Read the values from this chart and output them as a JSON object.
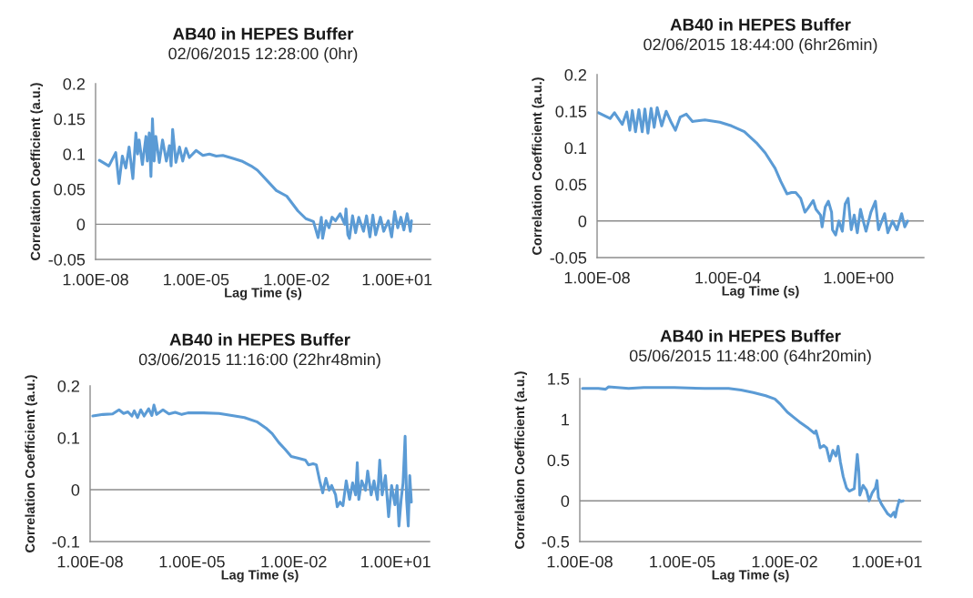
{
  "chart_data": [
    {
      "type": "line",
      "title": "AB40 in HEPES Buffer",
      "subtitle": "02/06/2015 12:28:00 (0hr)",
      "ref_lines": [
        {
          "axis": "y",
          "value": 0
        }
      ],
      "xlabel": "Lag Time (s)",
      "ylabel": "Correlation Coefficient (a.u.)",
      "log": "x",
      "grid": false,
      "legend": false,
      "marker": "none",
      "line_style": "solid",
      "xlim": [
        1e-08,
        100
      ],
      "xticks": [
        {
          "value": 1e-08,
          "label": "1.00E-08"
        },
        {
          "value": 1e-05,
          "label": "1.00E-05"
        },
        {
          "value": 0.01,
          "label": "1.00E-02"
        },
        {
          "value": 10,
          "label": "1.00E+01"
        }
      ],
      "ylim": [
        -0.05,
        0.2
      ],
      "yticks": [
        -0.05,
        0,
        0.05,
        0.1,
        0.15,
        0.2
      ],
      "series": [
        {
          "color": "#5b9bd5",
          "x": [
            1.3e-08,
            2.5e-08,
            4e-08,
            5e-08,
            6.3e-08,
            8e-08,
            1e-07,
            1.3e-07,
            1.6e-07,
            1.8e-07,
            2e-07,
            2.5e-07,
            3.2e-07,
            3.5e-07,
            4e-07,
            4.5e-07,
            5e-07,
            5.6e-07,
            6.3e-07,
            8e-07,
            1e-06,
            1.3e-06,
            1.6e-06,
            1.8e-06,
            2e-06,
            2.5e-06,
            3.2e-06,
            4e-06,
            5e-06,
            6.3e-06,
            1e-05,
            1.6e-05,
            2.5e-05,
            4e-05,
            6.3e-05,
            0.00012,
            0.00023,
            0.00044,
            0.00068,
            0.0025,
            0.0051,
            0.011,
            0.019,
            0.032,
            0.044,
            0.055,
            0.06,
            0.076,
            0.093,
            0.115,
            0.145,
            0.2,
            0.275,
            0.3,
            0.34,
            0.38,
            0.47,
            0.58,
            0.72,
            1.0,
            1.23,
            1.55,
            1.9,
            2.3,
            3.2,
            4,
            5.5,
            6.9,
            8.5,
            10.5,
            13,
            16,
            20,
            25,
            27
          ],
          "values": [
            0.091,
            0.083,
            0.102,
            0.058,
            0.097,
            0.08,
            0.11,
            0.065,
            0.13,
            0.1,
            0.12,
            0.085,
            0.125,
            0.09,
            0.13,
            0.068,
            0.15,
            0.09,
            0.125,
            0.088,
            0.12,
            0.09,
            0.112,
            0.083,
            0.135,
            0.088,
            0.11,
            0.09,
            0.108,
            0.095,
            0.105,
            0.098,
            0.1,
            0.097,
            0.098,
            0.094,
            0.09,
            0.083,
            0.077,
            0.048,
            0.04,
            0.019,
            0.008,
            0.004,
            -0.019,
            0.01,
            -0.02,
            0.005,
            -0.005,
            0.01,
            0.005,
            0.015,
            0.0,
            0.022,
            -0.015,
            -0.02,
            0.012,
            -0.012,
            0.01,
            -0.01,
            0.012,
            -0.018,
            0.013,
            -0.015,
            0.01,
            -0.01,
            0.005,
            -0.018,
            0.018,
            -0.005,
            0.01,
            -0.008,
            0.015,
            -0.01,
            0.005
          ]
        }
      ]
    },
    {
      "type": "line",
      "title": "AB40 in HEPES Buffer",
      "subtitle": "02/06/2015 18:44:00 (6hr26min)",
      "ref_lines": [
        {
          "axis": "y",
          "value": 0
        }
      ],
      "xlabel": "Lag Time (s)",
      "ylabel": "Correlation Coefficient (a.u.)",
      "log": "x",
      "grid": false,
      "legend": false,
      "marker": "none",
      "line_style": "solid",
      "xlim": [
        1e-08,
        100
      ],
      "xticks": [
        {
          "value": 1e-08,
          "label": "1.00E-08"
        },
        {
          "value": 0.0001,
          "label": "1.00E-04"
        },
        {
          "value": 1,
          "label": "1.00E+00"
        }
      ],
      "ylim": [
        -0.05,
        0.2
      ],
      "yticks": [
        -0.05,
        0,
        0.05,
        0.1,
        0.15,
        0.2
      ],
      "series": [
        {
          "color": "#5b9bd5",
          "x": [
            1.1e-08,
            2.5e-08,
            3.4e-08,
            5.9e-08,
            8.1e-08,
            1e-07,
            1.2e-07,
            1.5e-07,
            1.9e-07,
            2.4e-07,
            2.9e-07,
            3.6e-07,
            4.5e-07,
            5.6e-07,
            6.9e-07,
            9.5e-07,
            1.3e-06,
            1.8e-06,
            2.5e-06,
            3.5e-06,
            5.4e-06,
            8.3e-06,
            2e-05,
            5.7e-05,
            0.00013,
            0.00032,
            0.00075,
            0.0014,
            0.0028,
            0.0042,
            0.0065,
            0.0089,
            0.012,
            0.017,
            0.023,
            0.029,
            0.041,
            0.05,
            0.069,
            0.077,
            0.096,
            0.12,
            0.15,
            0.16,
            0.2,
            0.25,
            0.32,
            0.39,
            0.48,
            0.6,
            0.74,
            0.92,
            1.15,
            1.4,
            1.7,
            2.4,
            3.3,
            4.1,
            6.3,
            7.9,
            11,
            15,
            21,
            26,
            32
          ],
          "values": [
            0.148,
            0.14,
            0.148,
            0.132,
            0.149,
            0.124,
            0.151,
            0.122,
            0.152,
            0.122,
            0.153,
            0.12,
            0.154,
            0.128,
            0.155,
            0.13,
            0.15,
            0.136,
            0.124,
            0.142,
            0.146,
            0.136,
            0.138,
            0.135,
            0.13,
            0.122,
            0.107,
            0.093,
            0.072,
            0.054,
            0.037,
            0.039,
            0.039,
            0.031,
            0.012,
            0.018,
            0.028,
            0.016,
            0.008,
            -0.008,
            0.019,
            0.027,
            0.012,
            -0.012,
            -0.019,
            0.0,
            -0.014,
            0.023,
            0.031,
            -0.012,
            0.008,
            -0.016,
            0.016,
            0.0,
            -0.014,
            0.012,
            0.027,
            -0.012,
            0.01,
            -0.016,
            0.0,
            -0.012,
            0.01,
            -0.008,
            0.0
          ]
        }
      ]
    },
    {
      "type": "line",
      "title": "AB40 in HEPES Buffer",
      "subtitle": "03/06/2015 11:16:00 (22hr48min)",
      "ref_lines": [
        {
          "axis": "y",
          "value": 0
        }
      ],
      "xlabel": "Lag Time (s)",
      "ylabel": "Correlation Coefficient (a.u.)",
      "log": "x",
      "grid": false,
      "legend": false,
      "marker": "none",
      "line_style": "solid",
      "xlim": [
        1e-08,
        100
      ],
      "xticks": [
        {
          "value": 1e-08,
          "label": "1.00E-08"
        },
        {
          "value": 1e-05,
          "label": "1.00E-05"
        },
        {
          "value": 0.01,
          "label": "1.00E-02"
        },
        {
          "value": 10,
          "label": "1.00E+01"
        }
      ],
      "ylim": [
        -0.1,
        0.2
      ],
      "yticks": [
        -0.1,
        0,
        0.1,
        0.2
      ],
      "series": [
        {
          "color": "#5b9bd5",
          "x": [
            1.2e-08,
            2.4e-08,
            4.6e-08,
            7.1e-08,
            9.7e-08,
            1.3e-07,
            1.7e-07,
            2e-07,
            2.5e-07,
            3.1e-07,
            3.9e-07,
            5.3e-07,
            6.6e-07,
            7.6e-07,
            9.1e-07,
            1.4e-06,
            2.1e-06,
            3.2e-06,
            5e-06,
            7.6e-06,
            2.2e-05,
            6.3e-05,
            0.00015,
            0.00035,
            0.00081,
            0.0015,
            0.0023,
            0.0036,
            0.0055,
            0.0084,
            0.013,
            0.022,
            0.027,
            0.037,
            0.046,
            0.058,
            0.071,
            0.088,
            0.11,
            0.13,
            0.17,
            0.19,
            0.23,
            0.28,
            0.35,
            0.44,
            0.54,
            0.66,
            0.74,
            0.82,
            1.0,
            1.3,
            1.5,
            1.9,
            2.3,
            2.9,
            3.4,
            4,
            5,
            6.2,
            7.6,
            9.5,
            11,
            12.5,
            14.5,
            16.5,
            19,
            21,
            23.5,
            26,
            29
          ],
          "values": [
            0.142,
            0.145,
            0.146,
            0.154,
            0.147,
            0.15,
            0.142,
            0.152,
            0.139,
            0.154,
            0.142,
            0.156,
            0.143,
            0.163,
            0.145,
            0.154,
            0.146,
            0.149,
            0.145,
            0.148,
            0.148,
            0.147,
            0.143,
            0.139,
            0.131,
            0.119,
            0.108,
            0.091,
            0.078,
            0.064,
            0.061,
            0.057,
            0.048,
            0.05,
            0.048,
            0.017,
            -0.006,
            0.022,
            -0.001,
            0.008,
            -0.01,
            -0.033,
            -0.024,
            -0.031,
            0.017,
            -0.019,
            0.013,
            -0.01,
            0.052,
            -0.019,
            0.017,
            -0.001,
            0.036,
            -0.01,
            0.017,
            -0.019,
            0.057,
            -0.01,
            0.027,
            -0.052,
            0.008,
            -0.029,
            0.008,
            -0.07,
            -0.019,
            0.013,
            0.103,
            -0.019,
            -0.07,
            0.027,
            -0.024
          ]
        }
      ]
    },
    {
      "type": "line",
      "title": "AB40 in HEPES Buffer",
      "subtitle": "05/06/2015 11:48:00 (64hr20min)",
      "ref_lines": [
        {
          "axis": "y",
          "value": 0
        }
      ],
      "xlabel": "Lag Time (s)",
      "ylabel": "Correlation Coefficient (a.u.)",
      "log": "x",
      "grid": false,
      "legend": false,
      "marker": "none",
      "line_style": "solid",
      "xlim": [
        1e-08,
        100
      ],
      "xticks": [
        {
          "value": 1e-08,
          "label": "1.00E-08"
        },
        {
          "value": 1e-05,
          "label": "1.00E-05"
        },
        {
          "value": 0.01,
          "label": "1.00E-02"
        },
        {
          "value": 10,
          "label": "1.00E+01"
        }
      ],
      "ylim": [
        -0.5,
        1.5
      ],
      "yticks": [
        -0.5,
        0,
        0.5,
        1,
        1.5
      ],
      "series": [
        {
          "color": "#5b9bd5",
          "x": [
            1.2e-08,
            3.5e-08,
            5.7e-08,
            7e-08,
            2.7e-07,
            7.5e-07,
            5.9e-06,
            4.6e-05,
            0.00023,
            0.00053,
            0.0012,
            0.0028,
            0.0052,
            0.0078,
            0.012,
            0.018,
            0.027,
            0.05,
            0.075,
            0.083,
            0.1,
            0.11,
            0.14,
            0.17,
            0.21,
            0.26,
            0.32,
            0.37,
            0.43,
            0.52,
            0.65,
            0.79,
            1.1,
            1.35,
            1.5,
            1.6,
            2,
            2.5,
            3,
            3.7,
            4.6,
            5.1,
            5.6,
            6.9,
            8.5,
            10.5,
            13,
            16,
            17.5,
            19.5,
            23,
            26,
            30
          ],
          "values": [
            1.38,
            1.38,
            1.37,
            1.4,
            1.38,
            1.39,
            1.39,
            1.38,
            1.38,
            1.36,
            1.33,
            1.29,
            1.25,
            1.18,
            1.09,
            1.03,
            0.97,
            0.89,
            0.83,
            0.86,
            0.74,
            0.65,
            0.68,
            0.65,
            0.49,
            0.62,
            0.55,
            0.67,
            0.48,
            0.3,
            0.16,
            0.12,
            0.15,
            0.57,
            0.36,
            0.07,
            0.19,
            0.13,
            0.0,
            0.1,
            0.16,
            0.25,
            0.04,
            -0.04,
            -0.1,
            -0.16,
            -0.19,
            -0.14,
            -0.2,
            -0.1,
            0.01,
            -0.01,
            0.0
          ]
        }
      ]
    }
  ]
}
